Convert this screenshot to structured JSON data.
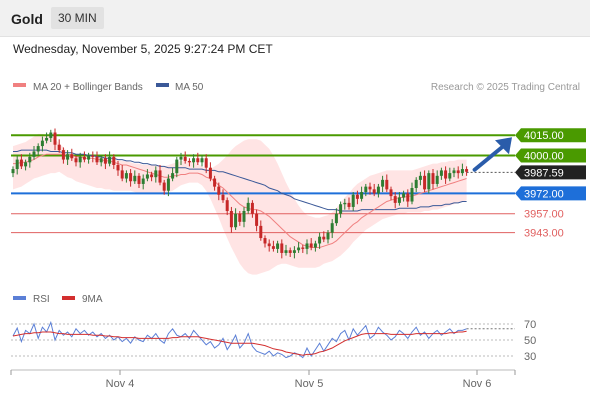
{
  "header": {
    "title": "Gold",
    "timeframe": "30 MIN"
  },
  "datetime": "Wednesday, November 5, 2025 9:27:24 PM CET",
  "credit": "Research © 2025 Trading Central",
  "legend": {
    "ma20": "MA 20 + Bollinger Bands",
    "ma50": "MA 50",
    "rsi": "RSI",
    "ma9": "9MA"
  },
  "colors": {
    "ma20": "#f08080",
    "ma50": "#3b5998",
    "band": "#ffd8d8",
    "bull": "#2e7d32",
    "bear": "#c62828",
    "resistance": "#4a9a00",
    "support": "#1e6fd9",
    "level": "#e06060",
    "arrow": "#2a5caa",
    "current": "#222222",
    "rsi": "#5b7fd6",
    "rsi_ma": "#d32f2f"
  },
  "chart_data": [
    {
      "type": "candlestick",
      "x_ticks": [
        "Nov 4",
        "Nov 5",
        "Nov 6"
      ],
      "levels": [
        {
          "value": 4015.0,
          "label": "4015.00",
          "kind": "resistance"
        },
        {
          "value": 4000.0,
          "label": "4000.00",
          "kind": "resistance"
        },
        {
          "value": 3987.59,
          "label": "3987.59",
          "kind": "current"
        },
        {
          "value": 3972.0,
          "label": "3972.00",
          "kind": "support"
        },
        {
          "value": 3957.0,
          "label": "3957.00",
          "kind": "level"
        },
        {
          "value": 3943.0,
          "label": "3943.00",
          "kind": "level"
        }
      ],
      "ylim": [
        3908,
        4044
      ],
      "forecast_target": 4015.0,
      "closes": [
        3990,
        3997,
        3992,
        3995,
        3999,
        4003,
        4007,
        4011,
        4013,
        4017,
        4008,
        4004,
        3997,
        4001,
        3998,
        3995,
        3999,
        3997,
        4000,
        3999,
        3995,
        3998,
        3994,
        3999,
        3993,
        3989,
        3983,
        3987,
        3981,
        3985,
        3979,
        3983,
        3986,
        3984,
        3989,
        3980,
        3974,
        3983,
        3987,
        3997,
        3999,
        3996,
        3995,
        3998,
        3995,
        3998,
        3991,
        3983,
        3977,
        3971,
        3967,
        3959,
        3947,
        3957,
        3951,
        3959,
        3965,
        3957,
        3948,
        3939,
        3935,
        3933,
        3931,
        3935,
        3928,
        3930,
        3928,
        3930,
        3932,
        3931,
        3935,
        3932,
        3935,
        3940,
        3938,
        3943,
        3950,
        3957,
        3964,
        3965,
        3962,
        3971,
        3968,
        3973,
        3977,
        3975,
        3972,
        3977,
        3982,
        3975,
        3970,
        3965,
        3969,
        3972,
        3966,
        3976,
        3982,
        3985,
        3975,
        3987,
        3979,
        3985,
        3989,
        3983,
        3987,
        3989,
        3987,
        3990,
        3988
      ],
      "bb_upper": [
        4007,
        4008,
        4009,
        4010,
        4012,
        4014,
        4016,
        4016,
        4015,
        4014,
        4012,
        4009,
        4006,
        4003,
        4001,
        3999,
        3998,
        3997,
        3996,
        3997,
        3998,
        3999,
        3999,
        3999,
        3998,
        3997,
        3996,
        3996,
        3995,
        3994,
        3994,
        3993,
        3993,
        3993,
        3993,
        3993,
        3992,
        3993,
        3994,
        3995,
        3996,
        3996,
        3996,
        3995,
        3994,
        3992,
        3990,
        3990,
        3992,
        3994,
        3997,
        4000,
        4004,
        4007,
        4009,
        4011,
        4012,
        4012,
        4012,
        4011,
        4008,
        4005,
        4000,
        3994,
        3987,
        3980,
        3974,
        3968,
        3963,
        3959,
        3956,
        3955,
        3954,
        3954,
        3955,
        3956,
        3958,
        3961,
        3965,
        3969,
        3972,
        3976,
        3979,
        3981,
        3983,
        3985,
        3986,
        3987,
        3988,
        3989,
        3989,
        3989,
        3989,
        3989,
        3989,
        3989,
        3990,
        3991,
        3992,
        3993,
        3994,
        3994,
        3995,
        3995,
        3996,
        3996,
        3997,
        3997,
        3997
      ],
      "bb_lower": [
        3975,
        3976,
        3977,
        3979,
        3981,
        3983,
        3984,
        3985,
        3986,
        3987,
        3987,
        3988,
        3986,
        3984,
        3983,
        3981,
        3980,
        3979,
        3978,
        3977,
        3976,
        3976,
        3975,
        3975,
        3974,
        3974,
        3974,
        3974,
        3974,
        3973,
        3972,
        3972,
        3972,
        3972,
        3972,
        3972,
        3972,
        3973,
        3974,
        3976,
        3978,
        3979,
        3980,
        3980,
        3980,
        3978,
        3974,
        3968,
        3961,
        3954,
        3946,
        3939,
        3932,
        3926,
        3920,
        3916,
        3913,
        3912,
        3912,
        3913,
        3914,
        3915,
        3917,
        3919,
        3920,
        3920,
        3919,
        3918,
        3917,
        3917,
        3917,
        3917,
        3917,
        3918,
        3920,
        3921,
        3922,
        3924,
        3926,
        3929,
        3932,
        3936,
        3939,
        3942,
        3945,
        3947,
        3949,
        3951,
        3953,
        3954,
        3955,
        3956,
        3957,
        3957,
        3958,
        3958,
        3958,
        3958,
        3959,
        3959,
        3960,
        3960,
        3961,
        3962,
        3963,
        3964,
        3965,
        3966,
        3967
      ],
      "ma20": [
        3994,
        3994,
        3995,
        3995,
        3996,
        3997,
        3999,
        4000,
        4001,
        4001,
        4001,
        4001,
        4001,
        4000,
        4000,
        3999,
        3999,
        3998,
        3998,
        3998,
        3997,
        3997,
        3996,
        3996,
        3995,
        3994,
        3993,
        3993,
        3992,
        3991,
        3990,
        3989,
        3988,
        3987,
        3986,
        3985,
        3984,
        3984,
        3985,
        3985,
        3986,
        3986,
        3987,
        3987,
        3987,
        3986,
        3984,
        3983,
        3981,
        3978,
        3976,
        3973,
        3970,
        3967,
        3964,
        3962,
        3961,
        3960,
        3960,
        3959,
        3957,
        3955,
        3952,
        3949,
        3946,
        3943,
        3940,
        3938,
        3936,
        3934,
        3933,
        3932,
        3932,
        3932,
        3933,
        3934,
        3935,
        3937,
        3940,
        3943,
        3946,
        3949,
        3951,
        3954,
        3956,
        3958,
        3960,
        3962,
        3964,
        3966,
        3967,
        3968,
        3969,
        3969,
        3970,
        3970,
        3971,
        3972,
        3973,
        3974,
        3975,
        3976,
        3977,
        3978,
        3979,
        3980,
        3981,
        3982,
        3983
      ],
      "ma50": [
        4003,
        4003,
        4004,
        4004,
        4004,
        4004,
        4004,
        4004,
        4004,
        4003,
        4003,
        4003,
        4002,
        4002,
        4002,
        4001,
        4001,
        4001,
        4000,
        4000,
        3999,
        3999,
        3998,
        3998,
        3998,
        3997,
        3997,
        3996,
        3996,
        3995,
        3995,
        3994,
        3994,
        3993,
        3993,
        3992,
        3992,
        3991,
        3991,
        3991,
        3991,
        3991,
        3990,
        3990,
        3990,
        3990,
        3989,
        3989,
        3989,
        3988,
        3988,
        3987,
        3986,
        3985,
        3984,
        3983,
        3982,
        3981,
        3980,
        3979,
        3978,
        3976,
        3975,
        3974,
        3972,
        3971,
        3970,
        3968,
        3967,
        3966,
        3965,
        3964,
        3963,
        3962,
        3961,
        3960,
        3960,
        3960,
        3959,
        3959,
        3959,
        3959,
        3959,
        3960,
        3960,
        3960,
        3960,
        3960,
        3960,
        3960,
        3960,
        3960,
        3961,
        3961,
        3961,
        3961,
        3961,
        3962,
        3962,
        3962,
        3963,
        3963,
        3963,
        3964,
        3964,
        3965,
        3965,
        3966,
        3966
      ]
    },
    {
      "type": "line",
      "title": "RSI",
      "y_ticks": [
        70,
        50,
        30
      ],
      "ylim": [
        20,
        80
      ],
      "rsi": [
        55,
        65,
        48,
        62,
        58,
        70,
        52,
        66,
        60,
        72,
        50,
        62,
        56,
        60,
        54,
        64,
        58,
        62,
        56,
        60,
        54,
        58,
        52,
        56,
        50,
        54,
        48,
        52,
        46,
        54,
        50,
        48,
        56,
        52,
        58,
        50,
        46,
        58,
        64,
        56,
        54,
        58,
        52,
        62,
        56,
        50,
        44,
        48,
        40,
        44,
        52,
        38,
        46,
        56,
        40,
        46,
        58,
        42,
        36,
        34,
        32,
        36,
        30,
        34,
        32,
        28,
        30,
        34,
        32,
        28,
        40,
        30,
        38,
        46,
        36,
        44,
        52,
        48,
        58,
        62,
        50,
        64,
        56,
        62,
        68,
        52,
        56,
        66,
        60,
        56,
        50,
        54,
        62,
        58,
        52,
        60,
        66,
        56,
        60,
        52,
        58,
        62,
        56,
        60,
        64,
        58,
        62,
        62,
        64
      ],
      "rsi_ma": [
        55,
        56,
        57,
        58,
        58,
        59,
        59,
        60,
        60,
        60,
        59,
        58,
        58,
        57,
        57,
        57,
        57,
        57,
        57,
        56,
        56,
        56,
        55,
        55,
        54,
        54,
        53,
        53,
        53,
        53,
        52,
        52,
        52,
        52,
        52,
        52,
        52,
        52,
        53,
        53,
        54,
        54,
        54,
        54,
        54,
        53,
        52,
        51,
        50,
        49,
        48,
        47,
        46,
        46,
        46,
        46,
        46,
        46,
        45,
        44,
        43,
        41,
        39,
        38,
        37,
        35,
        34,
        33,
        32,
        31,
        32,
        32,
        33,
        35,
        36,
        38,
        40,
        43,
        46,
        49,
        51,
        53,
        55,
        57,
        58,
        58,
        58,
        58,
        58,
        58,
        57,
        57,
        57,
        57,
        57,
        57,
        58,
        58,
        58,
        58,
        58,
        58,
        58,
        58,
        59,
        59,
        60,
        60,
        61
      ]
    }
  ]
}
